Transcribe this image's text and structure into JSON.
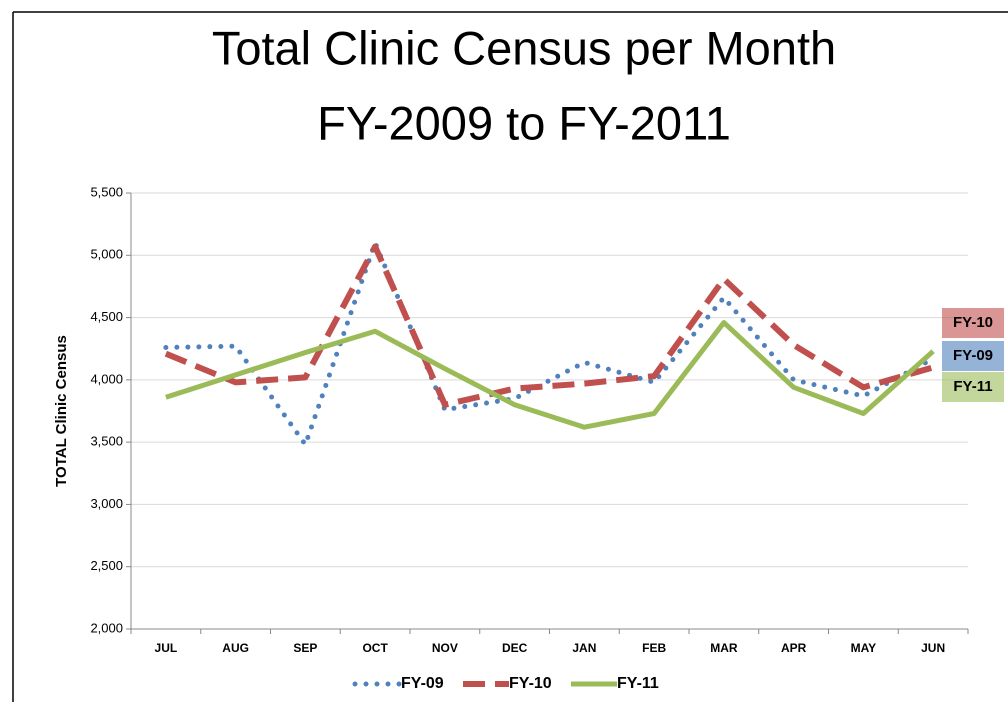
{
  "chart_data": {
    "type": "line",
    "title": [
      "Total Clinic Census per Month",
      "FY-2009 to FY-2011"
    ],
    "ylabel": "TOTAL Clinic Census",
    "categories": [
      "JUL",
      "AUG",
      "SEP",
      "OCT",
      "NOV",
      "DEC",
      "JAN",
      "FEB",
      "MAR",
      "APR",
      "MAY",
      "JUN"
    ],
    "series": [
      {
        "name": "FY-09",
        "color": "#4f81bd",
        "dash": "dotted",
        "values": [
          4260,
          4270,
          3480,
          5100,
          3760,
          3850,
          4140,
          3980,
          4660,
          4000,
          3870,
          4170
        ]
      },
      {
        "name": "FY-10",
        "color": "#c0504d",
        "dash": "dashed",
        "values": [
          4210,
          3980,
          4020,
          5070,
          3800,
          3930,
          3970,
          4030,
          4810,
          4280,
          3940,
          4100
        ]
      },
      {
        "name": "FY-11",
        "color": "#9bbb59",
        "dash": "solid",
        "values": [
          3860,
          4040,
          4220,
          4390,
          4090,
          3800,
          3620,
          3730,
          4460,
          3940,
          3730,
          4230
        ]
      }
    ],
    "ylim": [
      2000,
      5500
    ],
    "yticks": [
      {
        "value": 2000,
        "label": "2,000"
      },
      {
        "value": 2500,
        "label": "2,500"
      },
      {
        "value": 3000,
        "label": "3,000"
      },
      {
        "value": 3500,
        "label": "3,500"
      },
      {
        "value": 4000,
        "label": "4,000"
      },
      {
        "value": 4500,
        "label": "4,500"
      },
      {
        "value": 5000,
        "label": "5,000"
      },
      {
        "value": 5500,
        "label": "5,500"
      }
    ],
    "grid": true,
    "legend": "bottom"
  }
}
